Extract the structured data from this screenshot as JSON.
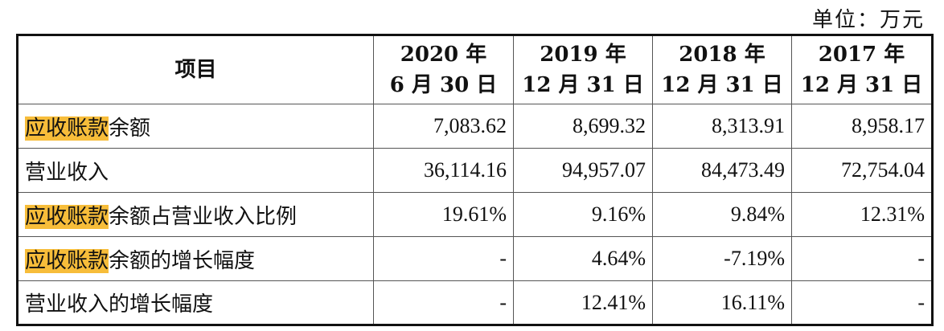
{
  "unit_label": "单位：万元",
  "table": {
    "header": {
      "item": "项目",
      "periods": [
        {
          "line1": "2020 年",
          "line2": "6 月 30 日"
        },
        {
          "line1": "2019 年",
          "line2": "12 月 31 日"
        },
        {
          "line1": "2018 年",
          "line2": "12 月 31 日"
        },
        {
          "line1": "2017 年",
          "line2": "12 月 31 日"
        }
      ]
    },
    "highlight_color": "#f7bd3a",
    "rows": [
      {
        "highlight": "应收账款",
        "rest": "余额",
        "values": [
          "7,083.62",
          "8,699.32",
          "8,313.91",
          "8,958.17"
        ]
      },
      {
        "highlight": "",
        "rest": "营业收入",
        "values": [
          "36,114.16",
          "94,957.07",
          "84,473.49",
          "72,754.04"
        ]
      },
      {
        "highlight": "应收账款",
        "rest": "余额占营业收入比例",
        "values": [
          "19.61%",
          "9.16%",
          "9.84%",
          "12.31%"
        ]
      },
      {
        "highlight": "应收账款",
        "rest": "余额的增长幅度",
        "values": [
          "-",
          "4.64%",
          "-7.19%",
          "-"
        ]
      },
      {
        "highlight": "",
        "rest": "营业收入的增长幅度",
        "values": [
          "-",
          "12.41%",
          "16.11%",
          "-"
        ]
      }
    ]
  }
}
